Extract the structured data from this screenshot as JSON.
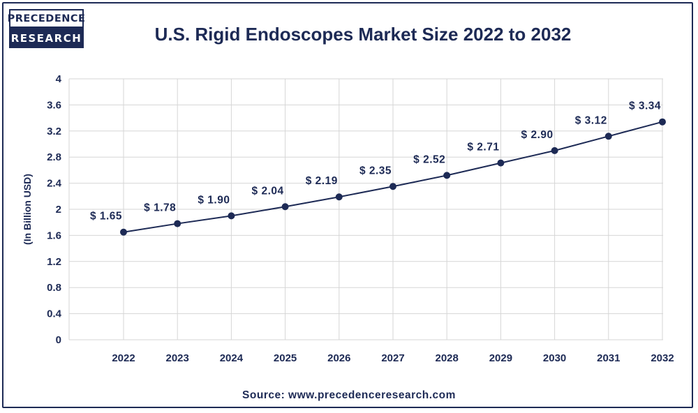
{
  "brand": {
    "line1": "PRECEDENCE",
    "line2": "RESEARCH"
  },
  "source": "Source: www.precedenceresearch.com",
  "colors": {
    "primary": "#1d2a55",
    "grid": "#d6d6d6"
  },
  "chart_data": {
    "type": "line",
    "title": "U.S. Rigid Endoscopes Market Size 2022 to 2032",
    "xlabel": "",
    "ylabel": "(In Billion USD)",
    "ylim": [
      0,
      4
    ],
    "yticks": [
      "0",
      "0.4",
      "0.8",
      "1.2",
      "1.6",
      "2",
      "2.4",
      "2.8",
      "3.2",
      "3.6",
      "4"
    ],
    "grid": true,
    "categories": [
      "2022",
      "2023",
      "2024",
      "2025",
      "2026",
      "2027",
      "2028",
      "2029",
      "2030",
      "2031",
      "2032"
    ],
    "series": [
      {
        "values": [
          1.65,
          1.78,
          1.9,
          2.04,
          2.19,
          2.35,
          2.52,
          2.71,
          2.9,
          3.12,
          3.34
        ],
        "labels": [
          "$ 1.65",
          "$ 1.78",
          "$ 1.90",
          "$ 2.04",
          "$ 2.19",
          "$ 2.35",
          "$ 2.52",
          "$ 2.71",
          "$ 2.90",
          "$ 3.12",
          "$ 3.34"
        ]
      }
    ]
  }
}
